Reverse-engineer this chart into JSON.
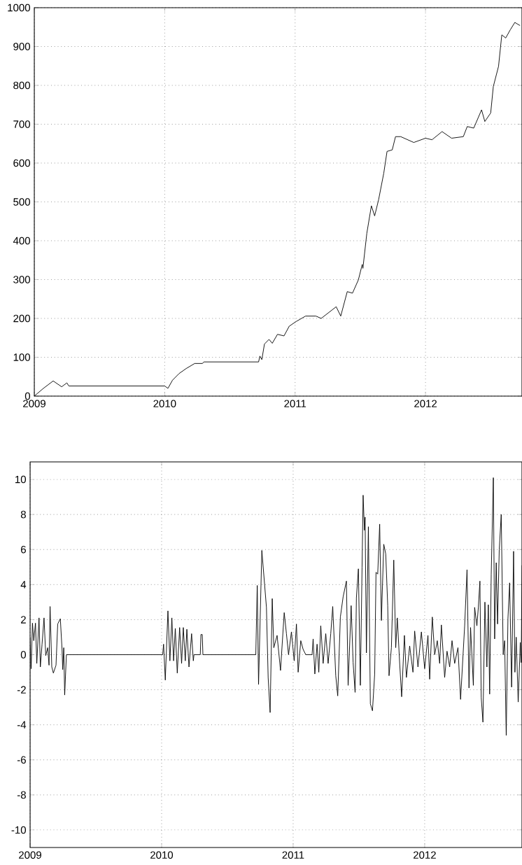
{
  "chart_data": [
    {
      "type": "line",
      "xlim": [
        2009,
        2012.74
      ],
      "ylim": [
        0,
        1000
      ],
      "xticks": [
        2009,
        2010,
        2011,
        2012
      ],
      "yticks": [
        0,
        100,
        200,
        300,
        400,
        500,
        600,
        700,
        800,
        900,
        1000
      ],
      "grid": true,
      "line_style": "solid",
      "color": "#000000",
      "x": [
        2009.0,
        2009.07,
        2009.145,
        2009.21,
        2009.25,
        2009.265,
        2010.0,
        2010.025,
        2010.06,
        2010.11,
        2010.165,
        2010.23,
        2010.29,
        2010.3,
        2010.72,
        2010.73,
        2010.745,
        2010.765,
        2010.8,
        2010.825,
        2010.865,
        2010.915,
        2010.955,
        2011.008,
        2011.08,
        2011.16,
        2011.2,
        2011.315,
        2011.35,
        2011.4,
        2011.44,
        2011.485,
        2011.515,
        2011.52,
        2011.55,
        2011.585,
        2011.61,
        2011.64,
        2011.68,
        2011.705,
        2011.745,
        2011.77,
        2011.81,
        2011.91,
        2012.0,
        2012.05,
        2012.127,
        2012.2,
        2012.29,
        2012.32,
        2012.37,
        2012.43,
        2012.455,
        2012.5,
        2012.52,
        2012.56,
        2012.585,
        2012.615,
        2012.65,
        2012.685,
        2012.725
      ],
      "values": [
        0,
        20,
        39,
        24,
        34,
        26,
        26,
        20,
        41,
        58,
        71,
        84,
        84,
        88,
        88,
        103,
        94,
        134,
        146,
        136,
        159,
        155,
        180,
        192,
        206,
        206,
        200,
        230,
        206,
        269,
        265,
        299,
        339,
        329,
        419,
        490,
        464,
        505,
        574,
        630,
        634,
        668,
        668,
        653,
        664,
        660,
        681,
        664,
        668,
        694,
        690,
        737,
        707,
        729,
        797,
        849,
        930,
        922,
        943,
        962,
        954
      ]
    },
    {
      "type": "line",
      "xlim": [
        2009,
        2012.74
      ],
      "ylim": [
        -11,
        11
      ],
      "xticks": [
        2009,
        2010,
        2011,
        2012
      ],
      "yticks": [
        -10,
        -8,
        -6,
        -4,
        -2,
        0,
        2,
        4,
        6,
        8,
        10
      ],
      "grid": true,
      "line_style": "solid",
      "color": "#000000",
      "x": [
        2009.0,
        2009.008,
        2009.018,
        2009.028,
        2009.041,
        2009.051,
        2009.068,
        2009.078,
        2009.091,
        2009.106,
        2009.119,
        2009.134,
        2009.144,
        2009.152,
        2009.165,
        2009.177,
        2009.197,
        2009.21,
        2009.23,
        2009.243,
        2009.248,
        2009.256,
        2009.263,
        2009.276,
        2010.008,
        2010.015,
        2010.028,
        2010.048,
        2010.063,
        2010.078,
        2010.091,
        2010.104,
        2010.119,
        2010.137,
        2010.152,
        2010.165,
        2010.18,
        2010.192,
        2010.208,
        2010.228,
        2010.241,
        2010.246,
        2010.294,
        2010.299,
        2010.309,
        2010.314,
        2010.716,
        2010.727,
        2010.737,
        2010.762,
        2010.797,
        2010.81,
        2010.825,
        2010.841,
        2010.853,
        2010.878,
        2010.904,
        2010.932,
        2010.949,
        2010.965,
        2010.987,
        2011.008,
        2011.025,
        2011.038,
        2011.058,
        2011.076,
        2011.096,
        2011.144,
        2011.152,
        2011.165,
        2011.182,
        2011.195,
        2011.21,
        2011.228,
        2011.248,
        2011.266,
        2011.286,
        2011.301,
        2011.324,
        2011.339,
        2011.359,
        2011.38,
        2011.405,
        2011.418,
        2011.441,
        2011.456,
        2011.471,
        2011.481,
        2011.496,
        2011.511,
        2011.524,
        2011.532,
        2011.542,
        2011.547,
        2011.557,
        2011.572,
        2011.587,
        2011.603,
        2011.62,
        2011.63,
        2011.643,
        2011.658,
        2011.671,
        2011.689,
        2011.704,
        2011.719,
        2011.729,
        2011.747,
        2011.765,
        2011.78,
        2011.792,
        2011.81,
        2011.825,
        2011.846,
        2011.861,
        2011.886,
        2011.911,
        2011.924,
        2011.949,
        2011.975,
        2012.0,
        2012.025,
        2012.038,
        2012.058,
        2012.076,
        2012.096,
        2012.114,
        2012.127,
        2012.152,
        2012.17,
        2012.19,
        2012.208,
        2012.228,
        2012.253,
        2012.273,
        2012.304,
        2012.322,
        2012.337,
        2012.349,
        2012.37,
        2012.38,
        2012.397,
        2012.408,
        2012.42,
        2012.43,
        2012.443,
        2012.458,
        2012.473,
        2012.484,
        2012.494,
        2012.506,
        2012.522,
        2012.532,
        2012.544,
        2012.554,
        2012.567,
        2012.582,
        2012.597,
        2012.608,
        2012.62,
        2012.633,
        2012.646,
        2012.661,
        2012.676,
        2012.686,
        2012.696,
        2012.711,
        2012.727,
        2012.734,
        2012.74
      ],
      "values": [
        1.0,
        -0.8,
        1.8,
        0.8,
        1.8,
        -0.5,
        2.1,
        -0.7,
        0.6,
        2.1,
        -0.05,
        0.4,
        -0.6,
        2.75,
        -0.7,
        -1.05,
        -0.6,
        1.75,
        2.05,
        0.3,
        -0.85,
        0.4,
        -2.3,
        0,
        0,
        0.6,
        -1.45,
        2.5,
        -0.35,
        2.1,
        -0.35,
        1.5,
        -1.05,
        1.55,
        -0.5,
        1.55,
        -0.35,
        1.45,
        -0.7,
        1.2,
        -0.35,
        0,
        0,
        1.15,
        1.15,
        0,
        0,
        3.95,
        -1.7,
        5.95,
        2.7,
        -1.3,
        -3.3,
        3.2,
        0.4,
        1.1,
        -0.9,
        2.4,
        1.2,
        0,
        1.3,
        -0.35,
        1.75,
        -1.0,
        0.8,
        0.3,
        0,
        0,
        0.9,
        -1.1,
        0.6,
        -1.0,
        1.65,
        -0.5,
        1.2,
        -0.5,
        1.2,
        2.75,
        -1.2,
        -2.35,
        2.15,
        3.3,
        4.2,
        -1.75,
        2.8,
        -0.45,
        -2.15,
        3.25,
        4.9,
        -1.75,
        5.0,
        9.1,
        7.1,
        7.85,
        0.1,
        7.3,
        -2.8,
        -3.2,
        -1.1,
        4.7,
        4.6,
        7.45,
        1.95,
        6.3,
        5.75,
        2.8,
        -1.2,
        0.4,
        5.4,
        0.4,
        2.1,
        -0.5,
        -2.4,
        1.1,
        -1.3,
        0.5,
        -1.0,
        1.35,
        -0.7,
        1.3,
        -0.8,
        1.1,
        -1.4,
        2.15,
        0,
        0.8,
        -0.5,
        1.7,
        -1.3,
        0.2,
        -0.7,
        0.8,
        -0.5,
        0.4,
        -2.55,
        1.65,
        4.85,
        -1.9,
        1.55,
        -1.75,
        2.7,
        1.65,
        2.7,
        4.2,
        -2.45,
        -3.85,
        3.0,
        -0.7,
        2.85,
        -2.25,
        4.6,
        10.1,
        0.9,
        5.25,
        1.75,
        6.0,
        8.0,
        0,
        0.8,
        -4.6,
        2.05,
        4.1,
        -1.85,
        5.9,
        -1.0,
        1.0,
        -2.7,
        0.7,
        -0.45,
        5.1
      ]
    }
  ]
}
